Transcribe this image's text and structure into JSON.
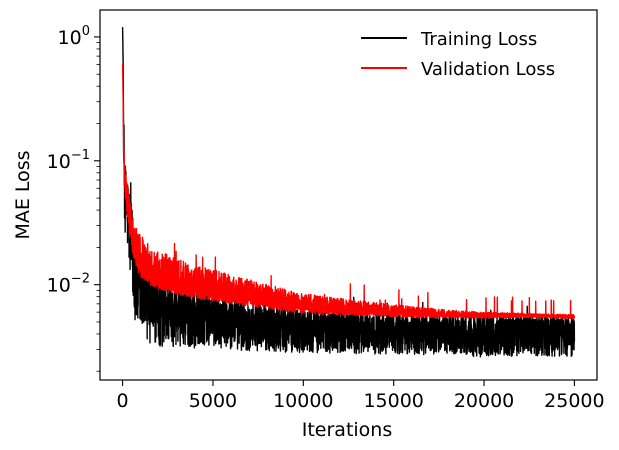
{
  "chart_data": {
    "type": "line",
    "title": "",
    "xlabel": "Iterations",
    "ylabel": "MAE Loss",
    "x_scale": "linear",
    "y_scale": "log",
    "xlim": [
      -1250,
      26250
    ],
    "ylim": [
      0.0017,
      1.65
    ],
    "xticks": [
      0,
      5000,
      10000,
      15000,
      20000,
      25000
    ],
    "xtick_labels": [
      "0",
      "5000",
      "10000",
      "15000",
      "20000",
      "25000"
    ],
    "yticks": [
      0.01,
      0.1,
      1
    ],
    "ytick_labels": [
      {
        "base": "10",
        "exp": "−2"
      },
      {
        "base": "10",
        "exp": "−1"
      },
      {
        "base": "10",
        "exp": "0"
      }
    ],
    "grid": false,
    "legend_position": "top-right",
    "series": [
      {
        "name": "Training Loss",
        "color": "#000000",
        "x": [
          0,
          50,
          100,
          200,
          400,
          600,
          800,
          1000,
          1500,
          2000,
          3000,
          4000,
          5000,
          6000,
          7000,
          8000,
          9000,
          10000,
          12000,
          14000,
          16000,
          18000,
          20000,
          22000,
          25000
        ],
        "y": [
          1.2,
          0.2,
          0.065,
          0.045,
          0.025,
          0.013,
          0.009,
          0.008,
          0.0068,
          0.0062,
          0.0058,
          0.0055,
          0.0052,
          0.005,
          0.0048,
          0.0047,
          0.0046,
          0.0045,
          0.0044,
          0.0043,
          0.0042,
          0.0041,
          0.004,
          0.004,
          0.004
        ],
        "spread_low": [
          1.0,
          0.7,
          0.45,
          0.45,
          0.45,
          0.45,
          0.45,
          0.45,
          0.5,
          0.5,
          0.55,
          0.55,
          0.6,
          0.6,
          0.6,
          0.62,
          0.62,
          0.63,
          0.63,
          0.64,
          0.65,
          0.65,
          0.65,
          0.66,
          0.66
        ],
        "spread_high": [
          1.0,
          1.4,
          1.7,
          1.8,
          2.2,
          2.4,
          2.3,
          2.2,
          2.1,
          2.0,
          1.8,
          1.7,
          1.6,
          1.55,
          1.5,
          1.48,
          1.45,
          1.4,
          1.38,
          1.36,
          1.36,
          1.38,
          1.4,
          1.42,
          1.42
        ]
      },
      {
        "name": "Validation Loss",
        "color": "#ff0000",
        "x": [
          0,
          50,
          100,
          200,
          400,
          600,
          800,
          1000,
          1500,
          2000,
          3000,
          4000,
          5000,
          6000,
          7000,
          8000,
          9000,
          10000,
          12000,
          14000,
          16000,
          18000,
          20000,
          22000,
          25000
        ],
        "y": [
          0.6,
          0.12,
          0.07,
          0.05,
          0.03,
          0.02,
          0.016,
          0.014,
          0.012,
          0.011,
          0.0098,
          0.009,
          0.0085,
          0.008,
          0.0076,
          0.0072,
          0.0068,
          0.0065,
          0.0062,
          0.006,
          0.0058,
          0.0057,
          0.0056,
          0.0056,
          0.0055
        ],
        "spread_low": [
          1.0,
          0.85,
          0.8,
          0.8,
          0.8,
          0.8,
          0.82,
          0.82,
          0.83,
          0.84,
          0.85,
          0.86,
          0.87,
          0.88,
          0.88,
          0.89,
          0.9,
          0.9,
          0.92,
          0.93,
          0.94,
          0.95,
          0.96,
          0.97,
          0.97
        ],
        "spread_high": [
          1.0,
          1.3,
          1.4,
          1.5,
          1.6,
          1.7,
          1.8,
          1.8,
          1.75,
          1.7,
          1.65,
          1.6,
          1.55,
          1.5,
          1.45,
          1.4,
          1.35,
          1.3,
          1.25,
          1.2,
          1.15,
          1.1,
          1.07,
          1.05,
          1.04
        ]
      }
    ]
  }
}
